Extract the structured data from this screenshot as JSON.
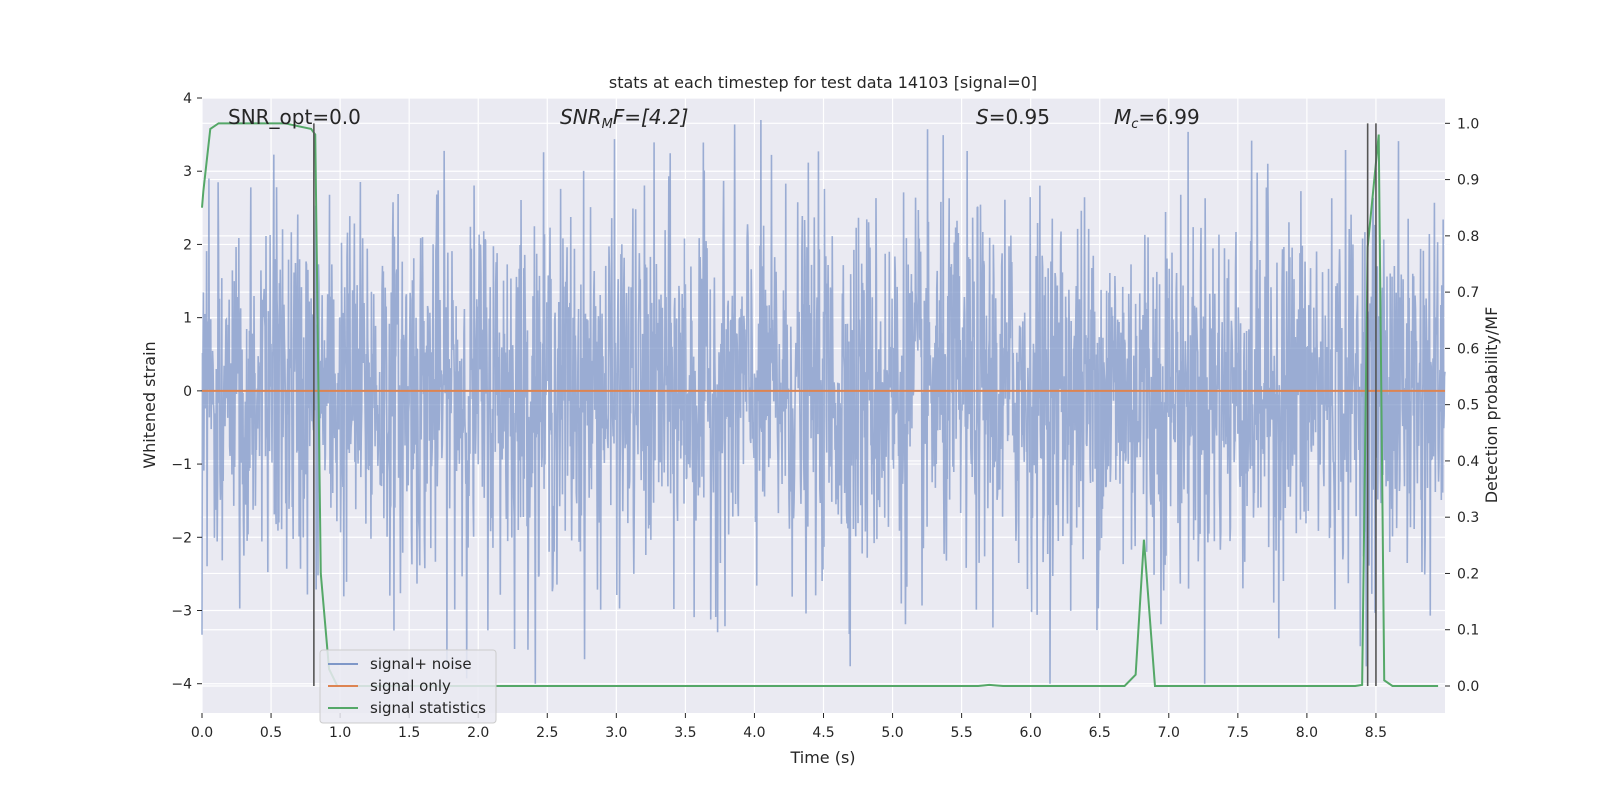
{
  "chart_data": {
    "type": "line",
    "title": "stats at each timestep for test data 14103 [signal=0]",
    "xlabel": "Time (s)",
    "ylabel": "Whitened strain",
    "ylabel_right": "Detection probability/MF",
    "xlim": [
      0.0,
      9.0
    ],
    "ylim": [
      -4.4,
      4.0
    ],
    "ylim_right": [
      -0.048,
      1.045
    ],
    "xticks": [
      "0.0",
      "0.5",
      "1.0",
      "1.5",
      "2.0",
      "2.5",
      "3.0",
      "3.5",
      "4.0",
      "4.5",
      "5.0",
      "5.5",
      "6.0",
      "6.5",
      "7.0",
      "7.5",
      "8.0",
      "8.5"
    ],
    "xtick_values": [
      0.0,
      0.5,
      1.0,
      1.5,
      2.0,
      2.5,
      3.0,
      3.5,
      4.0,
      4.5,
      5.0,
      5.5,
      6.0,
      6.5,
      7.0,
      7.5,
      8.0,
      8.5
    ],
    "yticks": [
      "−4",
      "−3",
      "−2",
      "−1",
      "0",
      "1",
      "2",
      "3",
      "4"
    ],
    "ytick_values": [
      -4,
      -3,
      -2,
      -1,
      0,
      1,
      2,
      3,
      4
    ],
    "yticks_right": [
      "0.0",
      "0.1",
      "0.2",
      "0.3",
      "0.4",
      "0.5",
      "0.6",
      "0.7",
      "0.8",
      "0.9",
      "1.0"
    ],
    "ytick_right_values": [
      0.0,
      0.1,
      0.2,
      0.3,
      0.4,
      0.5,
      0.6,
      0.7,
      0.8,
      0.9,
      1.0
    ],
    "grid": true,
    "legend_placement": "lower-left",
    "annotations": {
      "snr_opt": "SNR_opt=0.0",
      "snr_mf": "SNR",
      "snr_mf_sub": "M",
      "snr_mf_rest": "F=[4.2]",
      "s_var": "S",
      "s_rest": "=0.95",
      "mc_var": "M",
      "mc_sub": "c",
      "mc_rest": "=6.99"
    },
    "series": [
      {
        "name": "signal+ noise",
        "color": "#7f97c8",
        "kind": "noise",
        "sample_rate": 300,
        "y_min": -4.0,
        "y_max": 3.7
      },
      {
        "name": "signal only",
        "color": "#dd8452",
        "x": [
          0.0,
          9.0
        ],
        "y": [
          0.0,
          0.0
        ]
      },
      {
        "name": "signal statistics",
        "color": "#55a868",
        "axis": "right",
        "x": [
          0.0,
          0.01,
          0.06,
          0.12,
          0.2,
          0.4,
          0.6,
          0.79,
          0.82,
          0.86,
          0.92,
          0.98,
          1.1,
          1.5,
          2.0,
          3.0,
          4.0,
          5.0,
          5.5,
          5.62,
          5.7,
          5.8,
          6.0,
          6.5,
          6.68,
          6.76,
          6.82,
          6.9,
          7.0,
          7.5,
          8.0,
          8.35,
          8.4,
          8.44,
          8.52,
          8.56,
          8.62,
          8.7,
          8.95
        ],
        "y": [
          0.85,
          0.88,
          0.99,
          1.0,
          1.0,
          1.0,
          1.0,
          0.99,
          0.98,
          0.2,
          0.03,
          0.0,
          0.0,
          0.0,
          0.0,
          0.0,
          0.0,
          0.0,
          0.0,
          0.0,
          0.002,
          0.0,
          0.0,
          0.0,
          0.0,
          0.02,
          0.26,
          0.0,
          0.0,
          0.0,
          0.0,
          0.0,
          0.002,
          0.78,
          0.98,
          0.01,
          0.0,
          0.0,
          0.0
        ]
      }
    ],
    "vertical_lines": [
      0.81,
      8.44,
      8.5
    ]
  }
}
